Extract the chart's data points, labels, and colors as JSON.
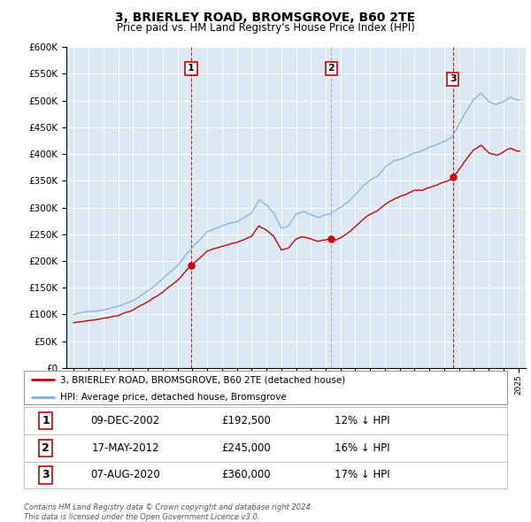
{
  "title": "3, BRIERLEY ROAD, BROMSGROVE, B60 2TE",
  "subtitle": "Price paid vs. HM Land Registry's House Price Index (HPI)",
  "background_color": "#dce9f5",
  "hpi_color": "#7ab4d8",
  "price_color": "#cc0000",
  "vline_color_solid": "#cc0000",
  "vline_color_dashed": "#aaaacc",
  "transactions": [
    {
      "label": "1",
      "date": "09-DEC-2002",
      "price": 192500,
      "hpi_pct": "12% ↓ HPI",
      "x_year": 2002.92,
      "vline_style": "solid"
    },
    {
      "label": "2",
      "date": "17-MAY-2012",
      "price": 245000,
      "hpi_pct": "16% ↓ HPI",
      "x_year": 2012.37,
      "vline_style": "dashed"
    },
    {
      "label": "3",
      "date": "07-AUG-2020",
      "price": 360000,
      "hpi_pct": "17% ↓ HPI",
      "x_year": 2020.59,
      "vline_style": "solid"
    }
  ],
  "legend_entries": [
    "3, BRIERLEY ROAD, BROMSGROVE, B60 2TE (detached house)",
    "HPI: Average price, detached house, Bromsgrove"
  ],
  "footer": "Contains HM Land Registry data © Crown copyright and database right 2024.\nThis data is licensed under the Open Government Licence v3.0.",
  "xlim": [
    1994.5,
    2025.5
  ],
  "ylim": [
    0,
    600000
  ],
  "yticks": [
    0,
    50000,
    100000,
    150000,
    200000,
    250000,
    300000,
    350000,
    400000,
    450000,
    500000,
    550000,
    600000
  ]
}
